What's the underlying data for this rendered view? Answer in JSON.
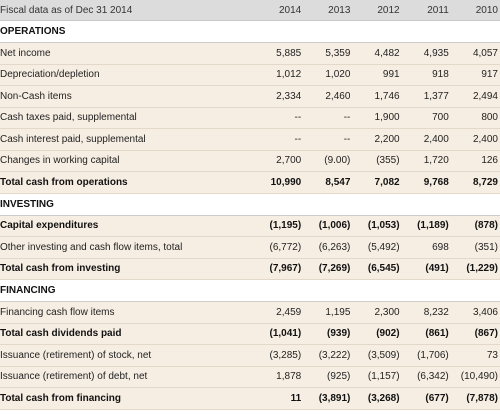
{
  "header": {
    "label": "Fiscal data as of Dec 31 2014",
    "years": [
      "2014",
      "2013",
      "2012",
      "2011",
      "2010"
    ]
  },
  "sections": [
    {
      "title": "OPERATIONS",
      "rows": [
        {
          "label": "Net income",
          "values": [
            "5,885",
            "5,359",
            "4,482",
            "4,935",
            "4,057"
          ],
          "total": false
        },
        {
          "label": "Depreciation/depletion",
          "values": [
            "1,012",
            "1,020",
            "991",
            "918",
            "917"
          ],
          "total": false
        },
        {
          "label": "Non-Cash items",
          "values": [
            "2,334",
            "2,460",
            "1,746",
            "1,377",
            "2,494"
          ],
          "total": false
        },
        {
          "label": "Cash taxes paid, supplemental",
          "values": [
            "--",
            "--",
            "1,900",
            "700",
            "800"
          ],
          "total": false
        },
        {
          "label": "Cash interest paid, supplemental",
          "values": [
            "--",
            "--",
            "2,200",
            "2,400",
            "2,400"
          ],
          "total": false
        },
        {
          "label": "Changes in working capital",
          "values": [
            "2,700",
            "(9.00)",
            "(355)",
            "1,720",
            "126"
          ],
          "total": false
        },
        {
          "label": "Total cash from operations",
          "values": [
            "10,990",
            "8,547",
            "7,082",
            "9,768",
            "8,729"
          ],
          "total": true
        }
      ]
    },
    {
      "title": "INVESTING",
      "rows": [
        {
          "label": "Capital expenditures",
          "values": [
            "(1,195)",
            "(1,006)",
            "(1,053)",
            "(1,189)",
            "(878)"
          ],
          "total": true
        },
        {
          "label": "Other investing and cash flow items, total",
          "values": [
            "(6,772)",
            "(6,263)",
            "(5,492)",
            "698",
            "(351)"
          ],
          "total": false
        },
        {
          "label": "Total cash from investing",
          "values": [
            "(7,967)",
            "(7,269)",
            "(6,545)",
            "(491)",
            "(1,229)"
          ],
          "total": true
        }
      ]
    },
    {
      "title": "FINANCING",
      "rows": [
        {
          "label": "Financing cash flow items",
          "values": [
            "2,459",
            "1,195",
            "2,300",
            "8,232",
            "3,406"
          ],
          "total": false
        },
        {
          "label": "Total cash dividends paid",
          "values": [
            "(1,041)",
            "(939)",
            "(902)",
            "(861)",
            "(867)"
          ],
          "total": true
        },
        {
          "label": "Issuance (retirement) of stock, net",
          "values": [
            "(3,285)",
            "(3,222)",
            "(3,509)",
            "(1,706)",
            "73"
          ],
          "total": false
        },
        {
          "label": "Issuance (retirement) of debt, net",
          "values": [
            "1,878",
            "(925)",
            "(1,157)",
            "(6,342)",
            "(10,490)"
          ],
          "total": false
        },
        {
          "label": "Total cash from financing",
          "values": [
            "11",
            "(3,891)",
            "(3,268)",
            "(677)",
            "(7,878)"
          ],
          "total": true
        }
      ]
    }
  ]
}
